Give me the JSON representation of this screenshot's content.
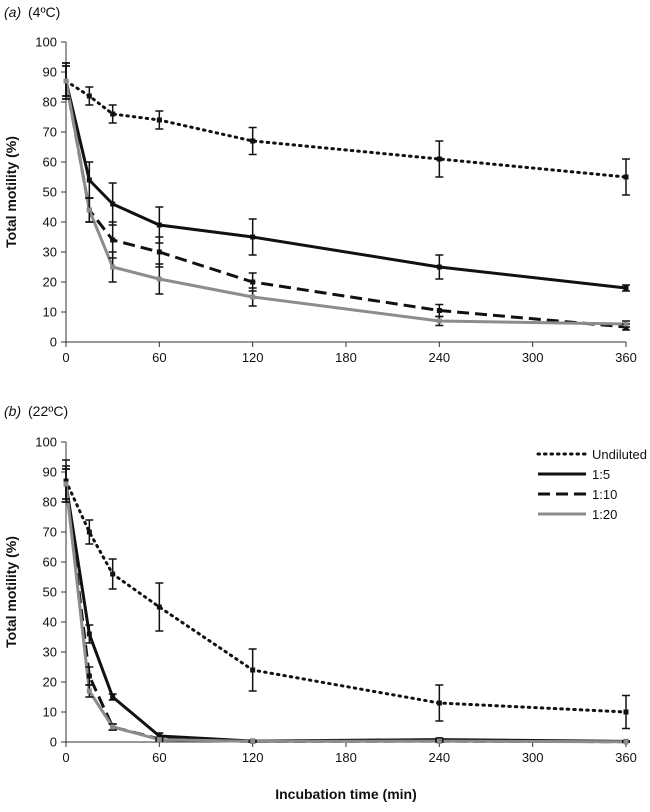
{
  "chart_data": [
    {
      "type": "line",
      "panel_label": "(a)",
      "condition": "(4ºC)",
      "xlabel": "",
      "ylabel": "Total motility (%)",
      "xlim": [
        0,
        360
      ],
      "ylim": [
        0,
        100
      ],
      "xticks": [
        0,
        60,
        120,
        180,
        240,
        300,
        360
      ],
      "yticks": [
        0,
        10,
        20,
        30,
        40,
        50,
        60,
        70,
        80,
        90,
        100
      ],
      "grid": false,
      "legend": false,
      "series": [
        {
          "key": "undiluted",
          "x": [
            0,
            15,
            30,
            60,
            120,
            240,
            360
          ],
          "y": [
            87,
            82,
            76,
            74,
            67,
            61,
            55
          ],
          "err": [
            6,
            3,
            3,
            3,
            4.5,
            6,
            6
          ]
        },
        {
          "key": "d5",
          "x": [
            0,
            15,
            30,
            60,
            120,
            240,
            360
          ],
          "y": [
            87,
            54,
            46,
            39,
            35,
            25,
            18
          ],
          "err": [
            6,
            6,
            7,
            6,
            6,
            4,
            1
          ]
        },
        {
          "key": "d10",
          "x": [
            0,
            15,
            30,
            60,
            120,
            240,
            360
          ],
          "y": [
            87,
            44,
            34,
            30,
            20,
            10.5,
            5
          ],
          "err": [
            5,
            4,
            6,
            5,
            3,
            2,
            1
          ]
        },
        {
          "key": "d20",
          "x": [
            0,
            15,
            30,
            60,
            120,
            240,
            360
          ],
          "y": [
            87,
            44,
            25,
            21,
            15,
            7,
            6
          ],
          "err": [
            5,
            4,
            5,
            5,
            3,
            1.5,
            1
          ]
        }
      ]
    },
    {
      "type": "line",
      "panel_label": "(b)",
      "condition": "(22ºC)",
      "xlabel": "Incubation time (min)",
      "ylabel": "Total motility (%)",
      "xlim": [
        0,
        360
      ],
      "ylim": [
        0,
        100
      ],
      "xticks": [
        0,
        60,
        120,
        180,
        240,
        300,
        360
      ],
      "yticks": [
        0,
        10,
        20,
        30,
        40,
        50,
        60,
        70,
        80,
        90,
        100
      ],
      "grid": false,
      "legend": true,
      "legend_position": "top-right",
      "series": [
        {
          "key": "undiluted",
          "name": "Undiluted",
          "x": [
            0,
            15,
            30,
            60,
            120,
            240,
            360
          ],
          "y": [
            87,
            70,
            56,
            45,
            24,
            13,
            10
          ],
          "err": [
            7,
            4,
            5,
            8,
            7,
            6,
            5.5
          ]
        },
        {
          "key": "d5",
          "name": "1:5",
          "x": [
            0,
            15,
            30,
            60,
            120,
            240,
            360
          ],
          "y": [
            86,
            36,
            15,
            2,
            0.3,
            0.8,
            0.2
          ],
          "err": [
            6,
            3,
            1,
            1,
            0.3,
            0.5,
            0.2
          ]
        },
        {
          "key": "d10",
          "name": "1:10",
          "x": [
            0,
            15,
            30,
            60,
            120,
            240,
            360
          ],
          "y": [
            86,
            22,
            5,
            1,
            0.2,
            0.3,
            0.1
          ],
          "err": [
            5,
            3,
            1,
            0.5,
            0.2,
            0.3,
            0.1
          ]
        },
        {
          "key": "d20",
          "name": "1:20",
          "x": [
            0,
            15,
            30,
            60,
            120,
            240,
            360
          ],
          "y": [
            86,
            17,
            5,
            0.8,
            0.2,
            0.3,
            0.1
          ],
          "err": [
            5,
            2,
            1,
            0.5,
            0.2,
            0.3,
            0.1
          ]
        }
      ]
    }
  ],
  "series_styles": {
    "undiluted": {
      "color": "#111111",
      "dash": "dotted"
    },
    "d5": {
      "color": "#111111",
      "dash": "solid"
    },
    "d10": {
      "color": "#111111",
      "dash": "dashed"
    },
    "d20": {
      "color": "#8c8c8c",
      "dash": "solid"
    }
  }
}
